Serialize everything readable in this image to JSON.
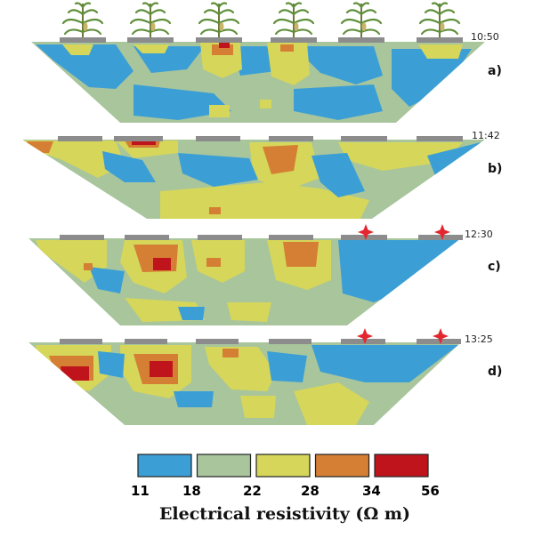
{
  "colors": {
    "blue": "#3b9fd6",
    "sage": "#a8c59c",
    "yellow": "#d6d65a",
    "orange": "#d47f33",
    "red": "#c0141c",
    "electrode": "#8c8c8c",
    "marker": "#e4262e"
  },
  "panels": [
    {
      "id": "a",
      "label": "a)",
      "time": "10:50",
      "plants": true,
      "markers": false
    },
    {
      "id": "b",
      "label": "b)",
      "time": "11:42",
      "plants": false,
      "markers": false
    },
    {
      "id": "c",
      "label": "c)",
      "time": "12:30",
      "plants": false,
      "markers": true
    },
    {
      "id": "d",
      "label": "d)",
      "time": "13:25",
      "plants": false,
      "markers": true
    }
  ],
  "legend": {
    "title": "Electrical resistivity (Ω m)",
    "ticks": [
      "11",
      "18",
      "22",
      "28",
      "34",
      "56"
    ],
    "swatch_colors": [
      "#3b9fd6",
      "#a8c59c",
      "#d6d65a",
      "#d47f33",
      "#c0141c"
    ]
  }
}
